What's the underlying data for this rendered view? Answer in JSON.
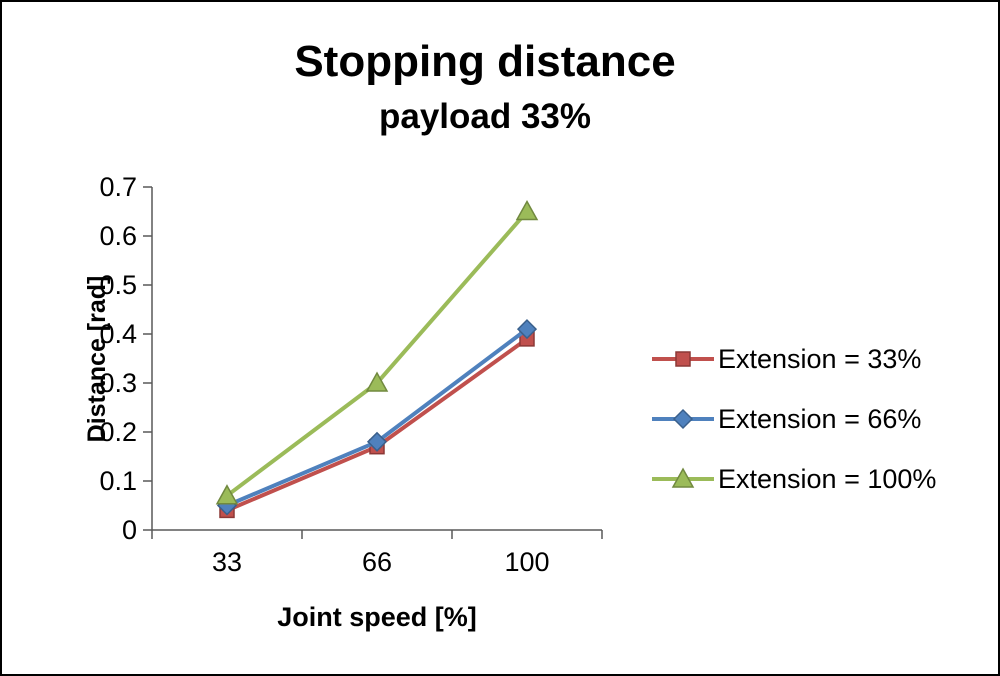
{
  "chart_data": {
    "type": "line",
    "title": "Stopping distance",
    "subtitle": "payload 33%",
    "xlabel": "Joint speed [%]",
    "ylabel": "Distance [rad]",
    "categories": [
      "33",
      "66",
      "100"
    ],
    "series": [
      {
        "name": "Extension = 33%",
        "marker": "square",
        "color": "#c0504d",
        "edge": "#8c3836",
        "values": [
          0.04,
          0.17,
          0.39
        ]
      },
      {
        "name": "Extension = 66%",
        "marker": "diamond",
        "color": "#4f81bd",
        "edge": "#3a608c",
        "values": [
          0.05,
          0.18,
          0.41
        ]
      },
      {
        "name": "Extension = 100%",
        "marker": "triangle",
        "color": "#9bbb59",
        "edge": "#71893f",
        "values": [
          0.07,
          0.3,
          0.65
        ]
      }
    ],
    "ylim": [
      0,
      0.7
    ],
    "ytick_step": 0.1,
    "ytick_labels": [
      "0",
      "0.1",
      "0.2",
      "0.3",
      "0.4",
      "0.5",
      "0.6",
      "0.7"
    ],
    "grid": false,
    "legend_position": "right",
    "axis_color": "#595959",
    "background_color": "#ffffff",
    "border_color": "#000000"
  }
}
